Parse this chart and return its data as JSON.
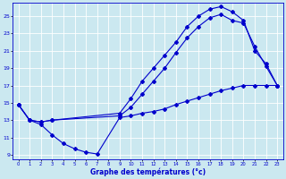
{
  "xlabel": "Graphe des températures (°c)",
  "bg_color": "#cbe8f0",
  "grid_color": "#ffffff",
  "line_color": "#0000cc",
  "xlim": [
    -0.5,
    23.5
  ],
  "ylim": [
    8.5,
    26.5
  ],
  "xticks": [
    0,
    1,
    2,
    3,
    4,
    5,
    6,
    7,
    8,
    9,
    10,
    11,
    12,
    13,
    14,
    15,
    16,
    17,
    18,
    19,
    20,
    21,
    22,
    23
  ],
  "yticks": [
    9,
    11,
    13,
    15,
    17,
    19,
    21,
    23,
    25
  ],
  "curve1_x": [
    0,
    1,
    2,
    3,
    4,
    5,
    6,
    7,
    9,
    10,
    11,
    12,
    13,
    14,
    15,
    16,
    17,
    18,
    19,
    20,
    21,
    22,
    23
  ],
  "curve1_y": [
    14.8,
    13.0,
    12.5,
    11.3,
    10.3,
    9.7,
    9.3,
    9.1,
    13.3,
    13.5,
    13.8,
    14.0,
    14.3,
    14.8,
    15.2,
    15.6,
    16.0,
    16.4,
    16.7,
    17.0,
    17.0,
    17.0,
    17.0
  ],
  "curve2_x": [
    0,
    1,
    2,
    3,
    9,
    10,
    11,
    12,
    13,
    14,
    15,
    16,
    17,
    18,
    19,
    20,
    21,
    22,
    23
  ],
  "curve2_y": [
    14.8,
    13.0,
    12.8,
    13.0,
    13.5,
    14.5,
    16.0,
    17.5,
    19.0,
    20.8,
    22.5,
    23.8,
    24.8,
    25.2,
    24.5,
    24.2,
    21.5,
    19.2,
    17.0
  ],
  "curve3_x": [
    0,
    1,
    2,
    3,
    9,
    10,
    11,
    12,
    13,
    14,
    15,
    16,
    17,
    18,
    19,
    20,
    21,
    22,
    23
  ],
  "curve3_y": [
    14.8,
    13.0,
    12.8,
    13.0,
    13.8,
    15.5,
    17.5,
    19.0,
    20.5,
    22.0,
    23.8,
    25.0,
    25.8,
    26.1,
    25.5,
    24.5,
    21.0,
    19.5,
    17.0
  ]
}
